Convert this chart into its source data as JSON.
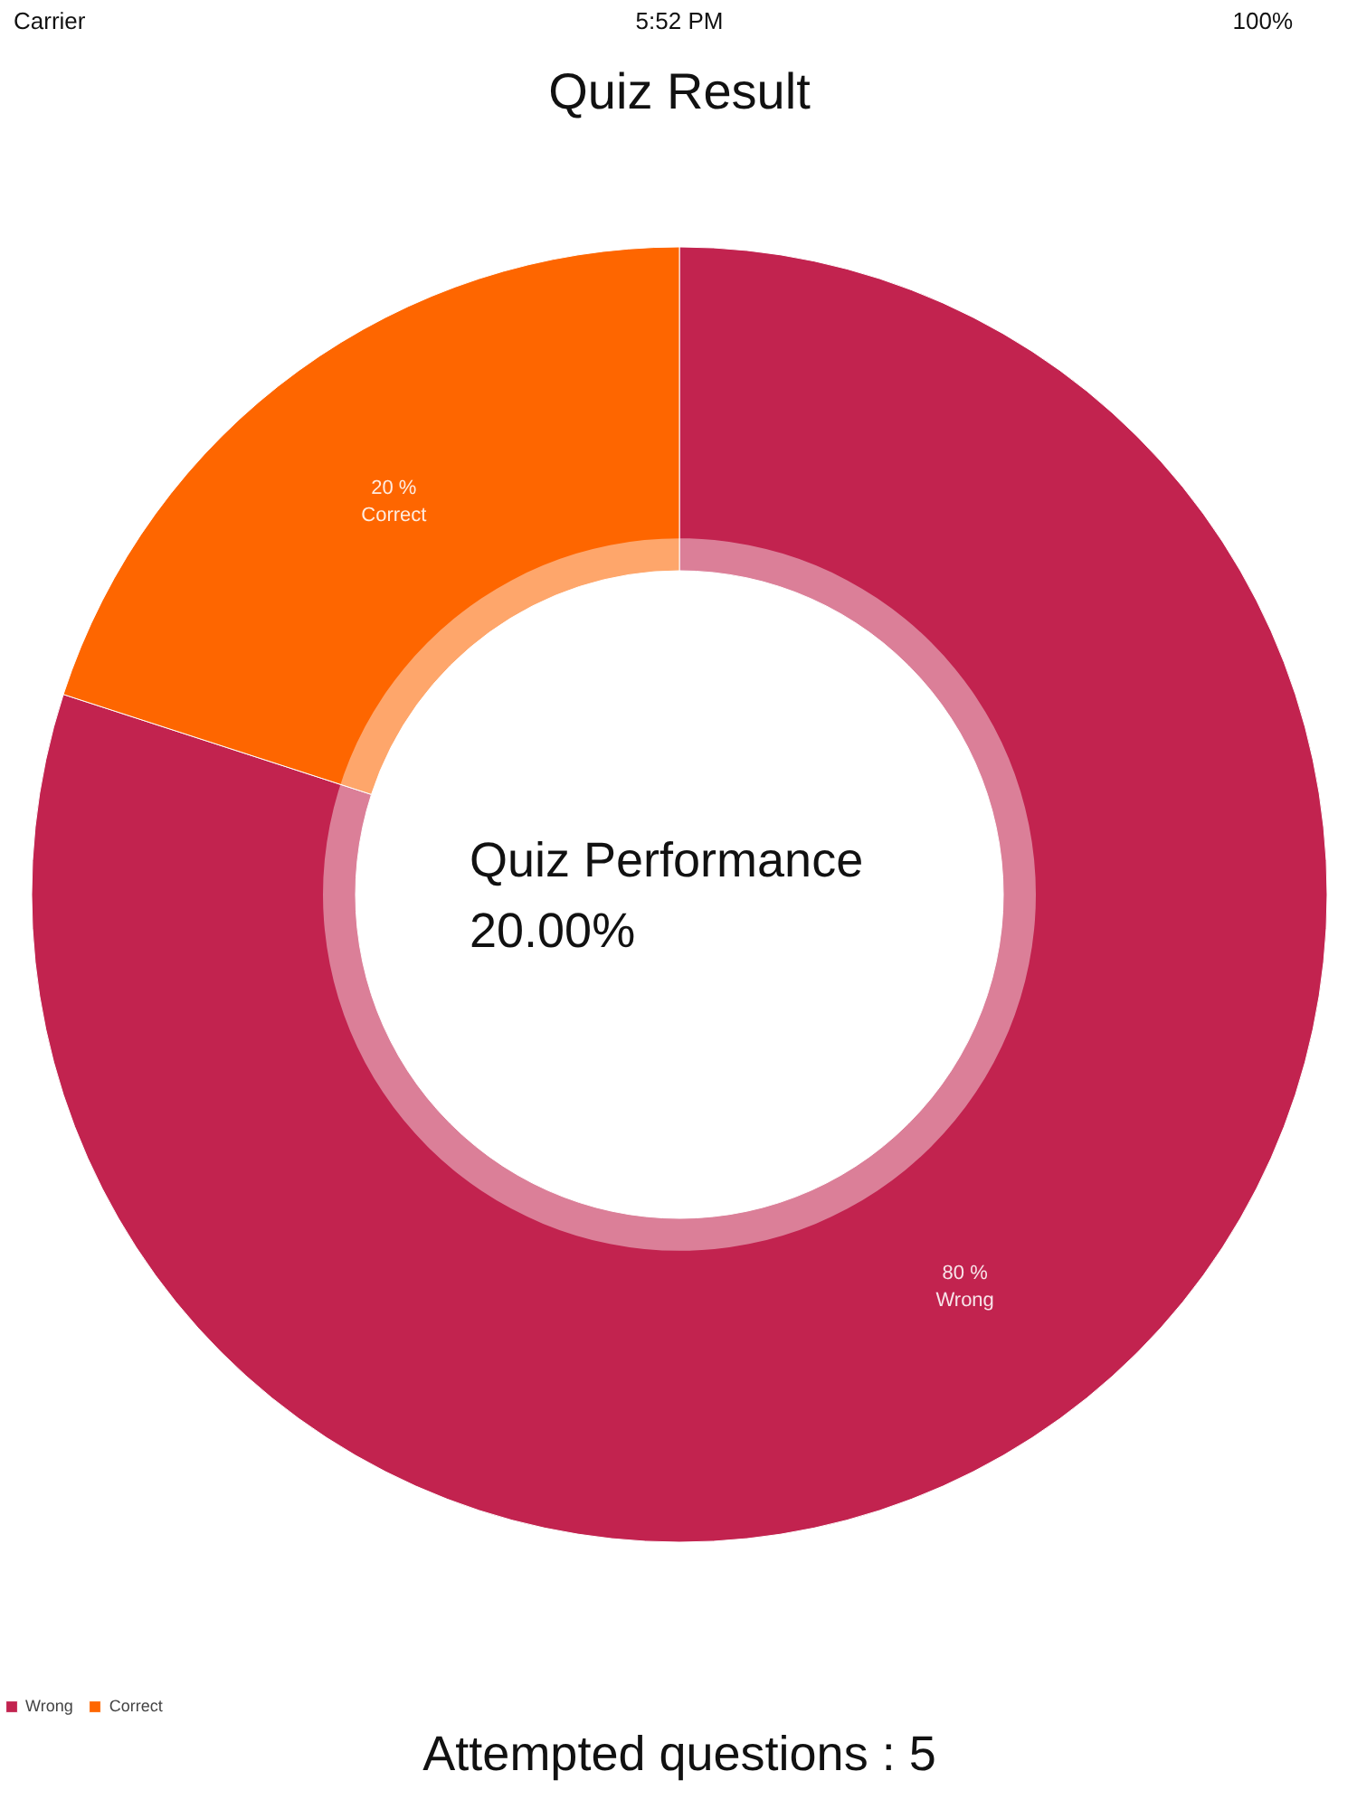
{
  "chart_data": {
    "type": "donut",
    "title": "Quiz Result",
    "categories": [
      "Wrong",
      "Correct"
    ],
    "values": [
      80,
      20
    ],
    "colors": [
      "#c2234f",
      "#fe6600"
    ],
    "value_labels": [
      "80 %",
      "20 %"
    ],
    "legend": "bottom left",
    "annotations": [
      "Quiz Performance\n20.00%",
      "Attempted questions : 5",
      "Carrier",
      "5:52 PM",
      "100%"
    ]
  }
}
